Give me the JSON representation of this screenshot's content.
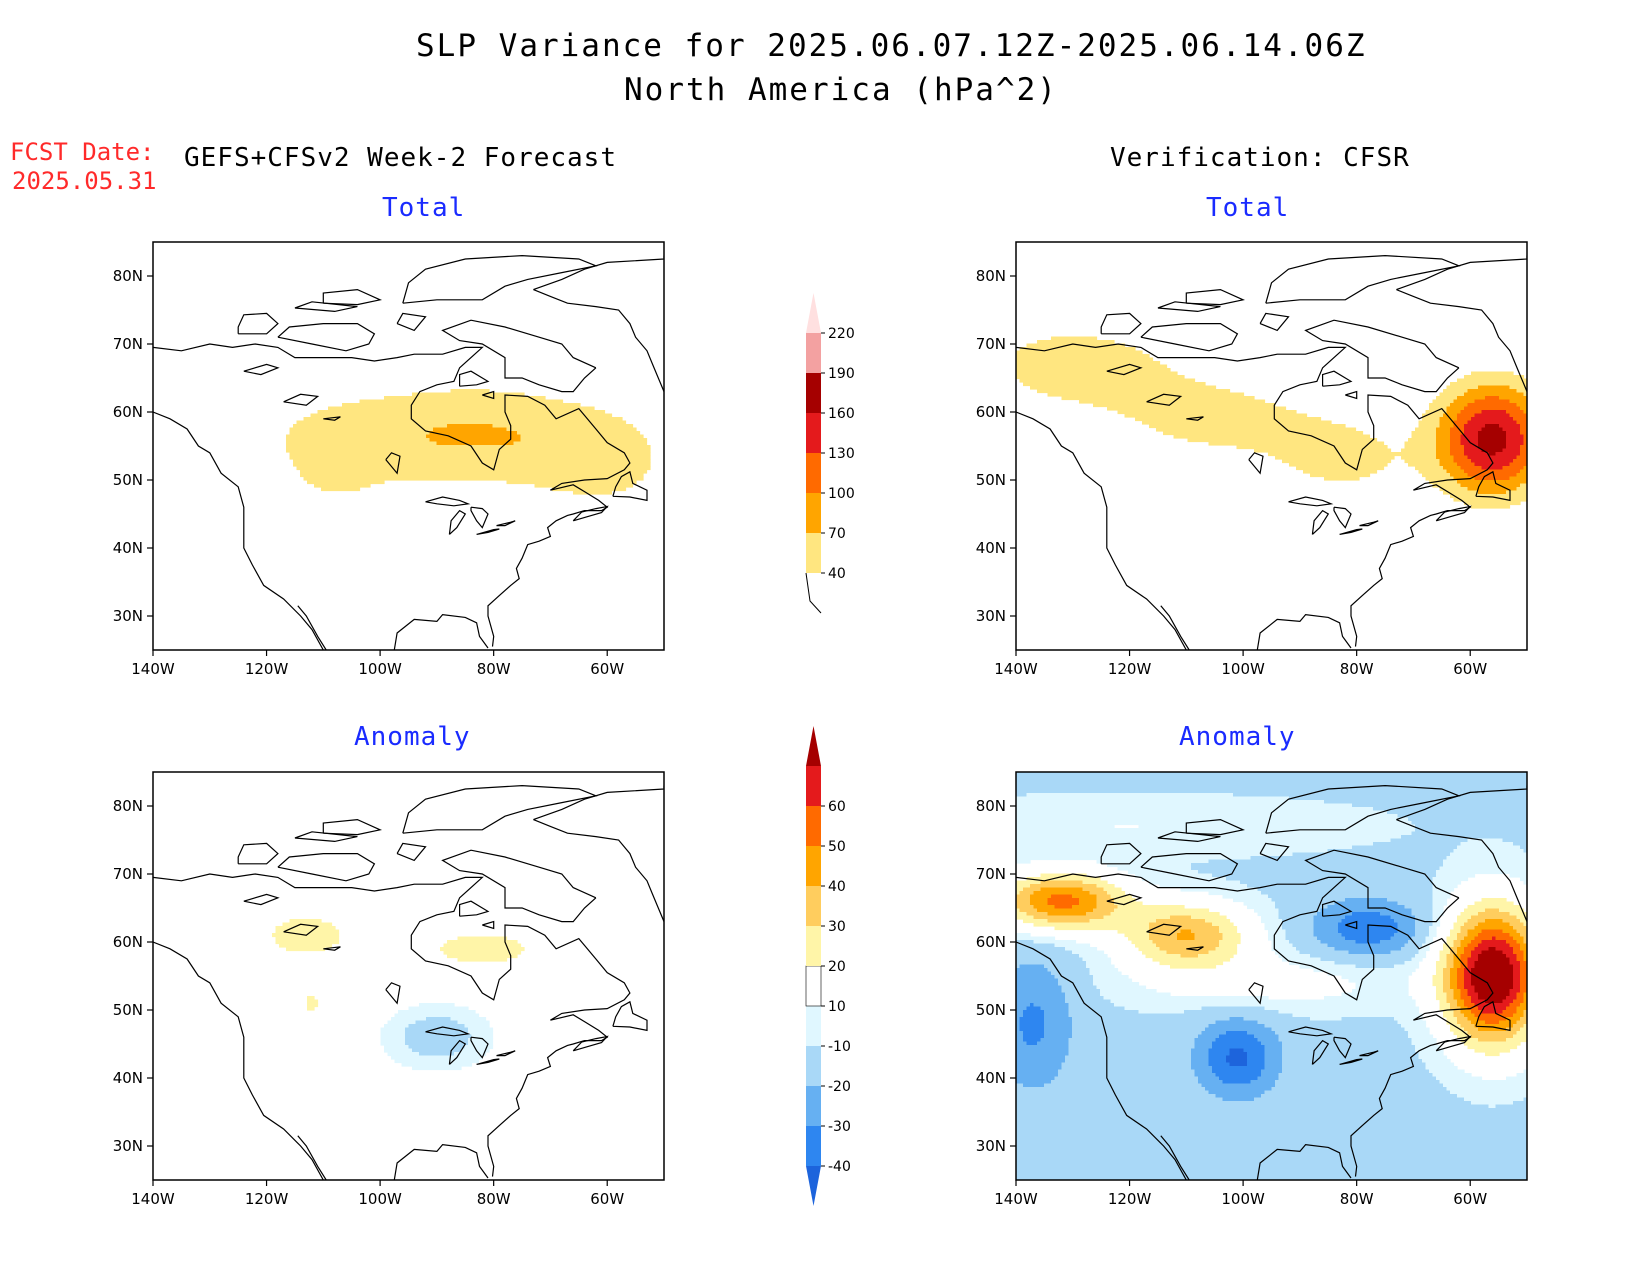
{
  "header": {
    "title_line1": "SLP Variance for 2025.06.07.12Z-2025.06.14.06Z",
    "title_line2": "North America (hPa^2)"
  },
  "fcst": {
    "label": "FCST Date:",
    "date": "2025.05.31"
  },
  "columns": {
    "left": "GEFS+CFSv2 Week-2 Forecast",
    "right": "Verification: CFSR"
  },
  "panels": {
    "forecast_total": {
      "title": "Total",
      "fields": [
        {
          "lon": -105,
          "lat": 56,
          "sx": 16,
          "sy": 6,
          "amp": 50
        },
        {
          "lon": -80,
          "lat": 57,
          "sx": 13,
          "sy": 6,
          "amp": 52
        },
        {
          "lon": -60,
          "lat": 53,
          "sx": 10,
          "sy": 6,
          "amp": 48
        },
        {
          "lon": -108,
          "lat": 50,
          "sx": 5,
          "sy": 3,
          "amp": 20
        }
      ]
    },
    "forecast_anomaly": {
      "title": "Anomaly",
      "fields": [
        {
          "lon": -113,
          "lat": 61,
          "sx": 6,
          "sy": 2.5,
          "amp": 16
        },
        {
          "lon": -82,
          "lat": 59,
          "sx": 8,
          "sy": 2.2,
          "amp": 15
        },
        {
          "lon": -112,
          "lat": 51,
          "sx": 1.2,
          "sy": 1.5,
          "amp": 13
        },
        {
          "lon": -90,
          "lat": 46,
          "sx": 6,
          "sy": 3,
          "amp": -16
        }
      ]
    },
    "verif_total": {
      "title": "Total",
      "fields": [
        {
          "lon": -130,
          "lat": 67,
          "sx": 14,
          "sy": 5,
          "amp": 55
        },
        {
          "lon": -105,
          "lat": 59,
          "sx": 14,
          "sy": 5,
          "amp": 48
        },
        {
          "lon": -82,
          "lat": 53,
          "sx": 10,
          "sy": 5,
          "amp": 45
        },
        {
          "lon": -56,
          "lat": 56,
          "sx": 7,
          "sy": 6,
          "amp": 170
        },
        {
          "lon": -80,
          "lat": 69,
          "sx": 3,
          "sy": 1,
          "amp": 35
        }
      ]
    },
    "verif_anomaly": {
      "title": "Anomaly",
      "fields": [
        {
          "lon": 0,
          "lat": 0,
          "sx": 1,
          "sy": 1,
          "amp": 0,
          "base": -12
        },
        {
          "lon": -132,
          "lat": 66,
          "sx": 8,
          "sy": 3,
          "amp": 55
        },
        {
          "lon": -110,
          "lat": 61,
          "sx": 8,
          "sy": 3.5,
          "amp": 42
        },
        {
          "lon": -78,
          "lat": 62,
          "sx": 7,
          "sy": 3,
          "amp": -25
        },
        {
          "lon": -56,
          "lat": 55,
          "sx": 6,
          "sy": 7,
          "amp": 85
        },
        {
          "lon": -101,
          "lat": 43,
          "sx": 5,
          "sy": 4,
          "amp": -30
        },
        {
          "lon": -137,
          "lat": 48,
          "sx": 5,
          "sy": 7,
          "amp": -20
        },
        {
          "lon": -95,
          "lat": 54,
          "sx": 18,
          "sy": 3,
          "amp": 12
        },
        {
          "lon": -120,
          "lat": 77,
          "sx": 30,
          "sy": 3,
          "amp": 8
        }
      ]
    }
  },
  "axes": {
    "lon_ticks": [
      "140W",
      "120W",
      "100W",
      "80W",
      "60W"
    ],
    "lat_ticks": [
      "30N",
      "40N",
      "50N",
      "60N",
      "70N",
      "80N"
    ]
  },
  "colorbars": {
    "total": {
      "levels": [
        "40",
        "70",
        "100",
        "130",
        "160",
        "190",
        "220"
      ],
      "colors": [
        "#ffe680",
        "#ffa500",
        "#ff6a00",
        "#e41a1c",
        "#a50000",
        "#f3a1a1",
        "#ffe0e0"
      ]
    },
    "anomaly": {
      "levels": [
        "-40",
        "-30",
        "-20",
        "-10",
        "10",
        "20",
        "30",
        "40",
        "50",
        "60"
      ],
      "colors": [
        "#1d64dc",
        "#2e86f0",
        "#66b0f2",
        "#a9d8f7",
        "#e0f7ff",
        "#ffffff",
        "#fff5a8",
        "#ffcd5e",
        "#ffa500",
        "#ff6a00",
        "#e41a1c",
        "#a50000"
      ]
    }
  }
}
